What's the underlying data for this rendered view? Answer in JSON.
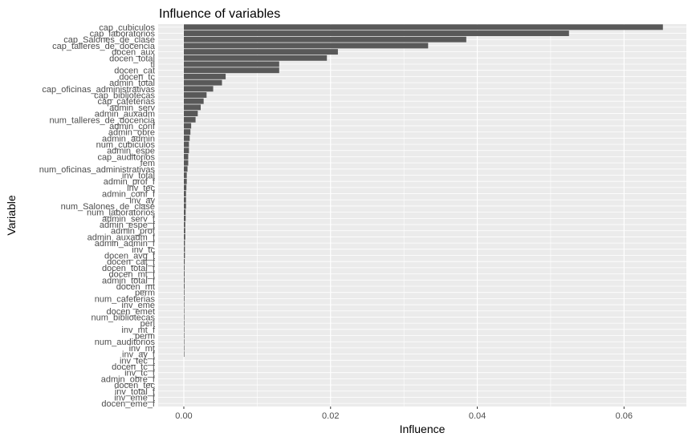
{
  "chart_data": {
    "type": "bar",
    "orientation": "horizontal",
    "title": "Influence of variables",
    "xlabel": "Influence",
    "ylabel": "Variable",
    "xlim": [
      -0.0035,
      0.0685
    ],
    "xticks": [
      0.0,
      0.02,
      0.04,
      0.06
    ],
    "xtick_labels": [
      "0.00",
      "0.02",
      "0.04",
      "0.06"
    ],
    "grid": true,
    "bar_color": "#595959",
    "panel_color": "#ebebeb",
    "categories": [
      "cap_cubiculos",
      "cap_laboratorios",
      "cap_Salones_de_clase",
      "cap_talleres_de_docencia",
      "docen_aux",
      "docen_total",
      "tl",
      "docen_cat",
      "docen_tc",
      "admin_total",
      "cap_oficinas_administrativas",
      "cap_bibliotecas",
      "cap_cafeterias",
      "admin_serv",
      "admin_auxadm",
      "num_talleres_de_docencia",
      "admin_conf",
      "admin_obre",
      "admin_admin",
      "num_cubiculos",
      "admin_espe",
      "cap_auditorios",
      "fem",
      "num_oficinas_administrativas",
      "inv_total",
      "admin_prof_f",
      "inv_tec",
      "admin_conf_f",
      "inv_ay",
      "num_Salones_de_clase",
      "num_laboratorios",
      "admin_serv_f",
      "admin_espe_f",
      "admin_prof",
      "admin_auxadm_f",
      "admin_admin_f",
      "inv_tc",
      "docen_avg_f",
      "docen_cat_f",
      "docen_total_f",
      "docen_mt_f",
      "admin_total_f",
      "docen_mt",
      "perm",
      "num_cafeterias",
      "inv_eme",
      "docen_emet",
      "num_bibliotecas",
      "perl",
      "inv_mt_f",
      "perm",
      "num_auditorios",
      "inv_mt",
      "inv_ay_f",
      "inv_tec_f",
      "docen_tc_f",
      "inv_tc_f",
      "admin_obre_f",
      "docen_tec",
      "inv_total_f",
      "inv_eme_f",
      "docen_eme_f"
    ],
    "values": [
      0.0653,
      0.0525,
      0.0385,
      0.0333,
      0.021,
      0.0195,
      0.013,
      0.013,
      0.0057,
      0.0052,
      0.004,
      0.0031,
      0.0027,
      0.0023,
      0.0019,
      0.0016,
      0.001,
      0.0009,
      0.0008,
      0.0007,
      0.0007,
      0.0006,
      0.0006,
      0.0005,
      0.0004,
      0.0004,
      0.00035,
      0.0003,
      0.0003,
      0.0003,
      0.00025,
      0.00025,
      0.0002,
      0.0002,
      0.0002,
      0.00015,
      0.00015,
      0.00015,
      0.00012,
      0.0001,
      0.0001,
      0.0001,
      0.0001,
      8e-05,
      8e-05,
      6e-05,
      6e-05,
      5e-05,
      4e-05,
      3e-05,
      2e-05,
      1e-05,
      1e-05,
      1e-05,
      0.0,
      0.0,
      0.0,
      0.0,
      0.0,
      0.0,
      0.0,
      0.0
    ]
  }
}
